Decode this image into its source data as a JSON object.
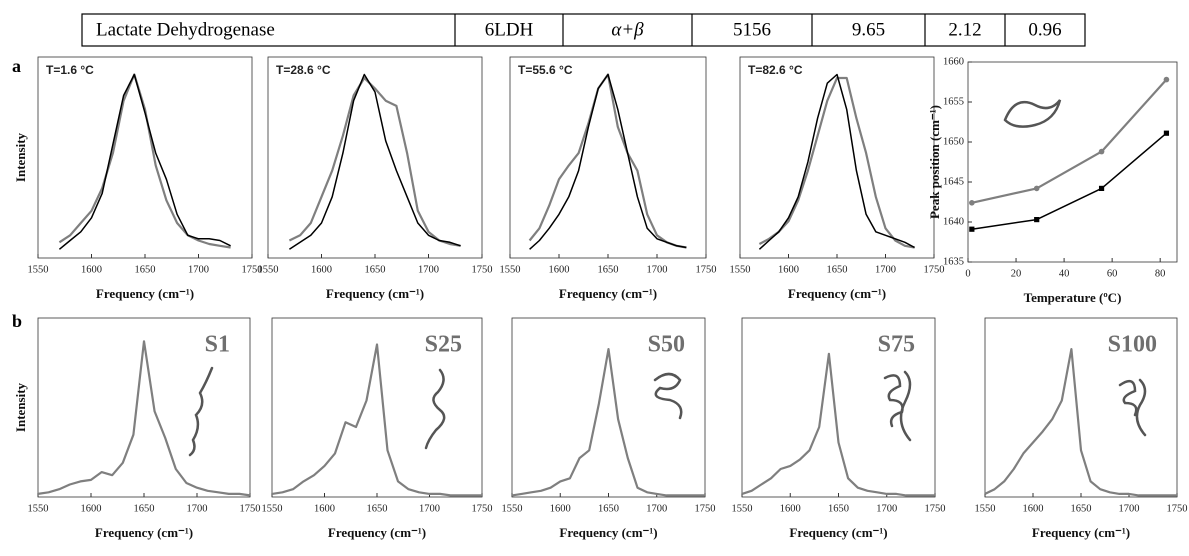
{
  "table": {
    "cells": [
      "Lactate Dehydrogenase",
      "6LDH",
      "α+β",
      "5156",
      "9.65",
      "2.12",
      "0.96"
    ]
  },
  "panel_labels": [
    "a",
    "b"
  ],
  "chart_data": [
    {
      "type": "line",
      "annotation": "T=1.6 °C",
      "x_label": "Frequency (cm⁻¹)",
      "y_label": "Intensity",
      "xlim": [
        1550,
        1750
      ],
      "xticks": [
        1550,
        1600,
        1650,
        1700,
        1750
      ],
      "ylim": [
        -0.05,
        1.1
      ],
      "x": [
        1570,
        1580,
        1590,
        1600,
        1610,
        1620,
        1630,
        1640,
        1650,
        1660,
        1670,
        1680,
        1690,
        1700,
        1710,
        1720,
        1730
      ],
      "series": [
        {
          "color": "#7f7f7f",
          "values": [
            0.04,
            0.08,
            0.15,
            0.22,
            0.35,
            0.55,
            0.85,
            1.0,
            0.8,
            0.48,
            0.28,
            0.15,
            0.08,
            0.05,
            0.03,
            0.02,
            0.01
          ]
        },
        {
          "color": "#000000",
          "values": [
            0.0,
            0.05,
            0.1,
            0.18,
            0.32,
            0.6,
            0.88,
            1.0,
            0.78,
            0.55,
            0.4,
            0.2,
            0.08,
            0.06,
            0.06,
            0.05,
            0.02
          ]
        }
      ]
    },
    {
      "type": "line",
      "annotation": "T=28.6 °C",
      "x_label": "Frequency (cm⁻¹)",
      "xlim": [
        1550,
        1750
      ],
      "xticks": [
        1550,
        1600,
        1650,
        1700,
        1750
      ],
      "ylim": [
        -0.05,
        1.1
      ],
      "x": [
        1570,
        1580,
        1590,
        1600,
        1610,
        1620,
        1630,
        1640,
        1650,
        1660,
        1670,
        1680,
        1690,
        1700,
        1710,
        1720,
        1730
      ],
      "series": [
        {
          "color": "#7f7f7f",
          "values": [
            0.05,
            0.08,
            0.15,
            0.3,
            0.45,
            0.65,
            0.88,
            0.98,
            0.92,
            0.85,
            0.82,
            0.55,
            0.22,
            0.1,
            0.05,
            0.03,
            0.02
          ]
        },
        {
          "color": "#000000",
          "values": [
            0.0,
            0.04,
            0.08,
            0.15,
            0.3,
            0.55,
            0.85,
            1.0,
            0.9,
            0.62,
            0.45,
            0.3,
            0.15,
            0.08,
            0.05,
            0.04,
            0.02
          ]
        }
      ]
    },
    {
      "type": "line",
      "annotation": "T=55.6 °C",
      "x_label": "Frequency (cm⁻¹)",
      "xlim": [
        1550,
        1750
      ],
      "xticks": [
        1550,
        1600,
        1650,
        1700,
        1750
      ],
      "ylim": [
        -0.05,
        1.1
      ],
      "x": [
        1570,
        1580,
        1590,
        1600,
        1610,
        1620,
        1630,
        1640,
        1650,
        1660,
        1670,
        1680,
        1690,
        1700,
        1710,
        1720,
        1730
      ],
      "series": [
        {
          "color": "#7f7f7f",
          "values": [
            0.05,
            0.12,
            0.25,
            0.4,
            0.48,
            0.55,
            0.72,
            0.92,
            1.0,
            0.7,
            0.55,
            0.45,
            0.2,
            0.08,
            0.04,
            0.02,
            0.01
          ]
        },
        {
          "color": "#000000",
          "values": [
            0.0,
            0.05,
            0.12,
            0.2,
            0.3,
            0.45,
            0.7,
            0.92,
            1.0,
            0.8,
            0.55,
            0.3,
            0.12,
            0.06,
            0.04,
            0.02,
            0.01
          ]
        }
      ]
    },
    {
      "type": "line",
      "annotation": "T=82.6 °C",
      "x_label": "Frequency (cm⁻¹)",
      "xlim": [
        1550,
        1750
      ],
      "xticks": [
        1550,
        1600,
        1650,
        1700,
        1750
      ],
      "ylim": [
        -0.05,
        1.1
      ],
      "x": [
        1570,
        1580,
        1590,
        1600,
        1610,
        1620,
        1630,
        1640,
        1650,
        1660,
        1670,
        1680,
        1690,
        1700,
        1710,
        1720,
        1730
      ],
      "series": [
        {
          "color": "#7f7f7f",
          "values": [
            0.03,
            0.06,
            0.1,
            0.16,
            0.28,
            0.45,
            0.65,
            0.85,
            0.98,
            0.98,
            0.75,
            0.55,
            0.3,
            0.12,
            0.05,
            0.02,
            0.01
          ]
        },
        {
          "color": "#000000",
          "values": [
            0.0,
            0.05,
            0.1,
            0.18,
            0.3,
            0.5,
            0.75,
            0.95,
            1.0,
            0.8,
            0.45,
            0.2,
            0.1,
            0.08,
            0.06,
            0.04,
            0.01
          ]
        }
      ]
    },
    {
      "type": "line",
      "x_label": "Temperature (ºC)",
      "y_label": "Peak position (cm⁻¹)",
      "xlim": [
        0,
        87
      ],
      "xticks": [
        0,
        20,
        40,
        60,
        80
      ],
      "ylim": [
        1635,
        1660
      ],
      "yticks": [
        1635,
        1640,
        1645,
        1650,
        1655,
        1660
      ],
      "x": [
        1.6,
        28.6,
        55.6,
        82.6
      ],
      "series": [
        {
          "color": "#7f7f7f",
          "marker": "circle",
          "values": [
            1642.4,
            1644.2,
            1648.8,
            1657.8
          ]
        },
        {
          "color": "#000000",
          "marker": "square",
          "values": [
            1639.1,
            1640.3,
            1644.2,
            1651.1
          ]
        }
      ]
    },
    {
      "type": "line",
      "annotation": "S1",
      "x_label": "Frequency (cm⁻¹)",
      "y_label": "Intensity",
      "xlim": [
        1550,
        1750
      ],
      "xticks": [
        1550,
        1600,
        1650,
        1700,
        1750
      ],
      "ylim": [
        0,
        1.15
      ],
      "x": [
        1550,
        1560,
        1570,
        1580,
        1590,
        1600,
        1610,
        1620,
        1630,
        1640,
        1650,
        1660,
        1670,
        1680,
        1690,
        1700,
        1710,
        1720,
        1730,
        1740,
        1750
      ],
      "series": [
        {
          "color": "#7f7f7f",
          "values": [
            0.02,
            0.03,
            0.05,
            0.08,
            0.1,
            0.11,
            0.16,
            0.14,
            0.22,
            0.4,
            1.0,
            0.55,
            0.38,
            0.18,
            0.09,
            0.06,
            0.04,
            0.03,
            0.02,
            0.02,
            0.01
          ]
        }
      ]
    },
    {
      "type": "line",
      "annotation": "S25",
      "x_label": "Frequency (cm⁻¹)",
      "xlim": [
        1550,
        1750
      ],
      "xticks": [
        1550,
        1600,
        1650,
        1700,
        1750
      ],
      "ylim": [
        0,
        1.15
      ],
      "x": [
        1550,
        1560,
        1570,
        1580,
        1590,
        1600,
        1610,
        1620,
        1630,
        1640,
        1650,
        1660,
        1670,
        1680,
        1690,
        1700,
        1710,
        1720,
        1730,
        1740,
        1750
      ],
      "series": [
        {
          "color": "#7f7f7f",
          "values": [
            0.02,
            0.03,
            0.05,
            0.1,
            0.14,
            0.2,
            0.28,
            0.48,
            0.45,
            0.62,
            0.98,
            0.3,
            0.1,
            0.05,
            0.03,
            0.02,
            0.02,
            0.01,
            0.01,
            0.01,
            0.01
          ]
        }
      ]
    },
    {
      "type": "line",
      "annotation": "S50",
      "x_label": "Frequency (cm⁻¹)",
      "xlim": [
        1550,
        1750
      ],
      "xticks": [
        1550,
        1600,
        1650,
        1700,
        1750
      ],
      "ylim": [
        0,
        1.15
      ],
      "x": [
        1550,
        1560,
        1570,
        1580,
        1590,
        1600,
        1610,
        1620,
        1630,
        1640,
        1650,
        1660,
        1670,
        1680,
        1690,
        1700,
        1710,
        1720,
        1730,
        1740,
        1750
      ],
      "series": [
        {
          "color": "#7f7f7f",
          "values": [
            0.01,
            0.02,
            0.03,
            0.04,
            0.06,
            0.1,
            0.12,
            0.25,
            0.3,
            0.6,
            0.95,
            0.5,
            0.25,
            0.06,
            0.03,
            0.02,
            0.01,
            0.01,
            0.01,
            0.01,
            0.01
          ]
        }
      ]
    },
    {
      "type": "line",
      "annotation": "S75",
      "x_label": "Frequency (cm⁻¹)",
      "xlim": [
        1550,
        1750
      ],
      "xticks": [
        1550,
        1600,
        1650,
        1700,
        1750
      ],
      "ylim": [
        0,
        1.15
      ],
      "x": [
        1550,
        1560,
        1570,
        1580,
        1590,
        1600,
        1610,
        1620,
        1630,
        1640,
        1650,
        1660,
        1670,
        1680,
        1690,
        1700,
        1710,
        1720,
        1730,
        1740,
        1750
      ],
      "series": [
        {
          "color": "#7f7f7f",
          "values": [
            0.02,
            0.04,
            0.08,
            0.12,
            0.18,
            0.2,
            0.24,
            0.3,
            0.45,
            0.92,
            0.35,
            0.12,
            0.06,
            0.04,
            0.03,
            0.02,
            0.02,
            0.01,
            0.01,
            0.01,
            0.01
          ]
        }
      ]
    },
    {
      "type": "line",
      "annotation": "S100",
      "x_label": "Frequency (cm⁻¹)",
      "xlim": [
        1550,
        1750
      ],
      "xticks": [
        1550,
        1600,
        1650,
        1700,
        1750
      ],
      "ylim": [
        0,
        1.15
      ],
      "x": [
        1550,
        1560,
        1570,
        1580,
        1590,
        1600,
        1610,
        1620,
        1630,
        1640,
        1650,
        1660,
        1670,
        1680,
        1690,
        1700,
        1710,
        1720,
        1730,
        1740,
        1750
      ],
      "series": [
        {
          "color": "#7f7f7f",
          "values": [
            0.02,
            0.05,
            0.1,
            0.18,
            0.28,
            0.35,
            0.42,
            0.5,
            0.62,
            0.95,
            0.3,
            0.1,
            0.05,
            0.03,
            0.02,
            0.02,
            0.01,
            0.01,
            0.01,
            0.01,
            0.01
          ]
        }
      ]
    }
  ]
}
